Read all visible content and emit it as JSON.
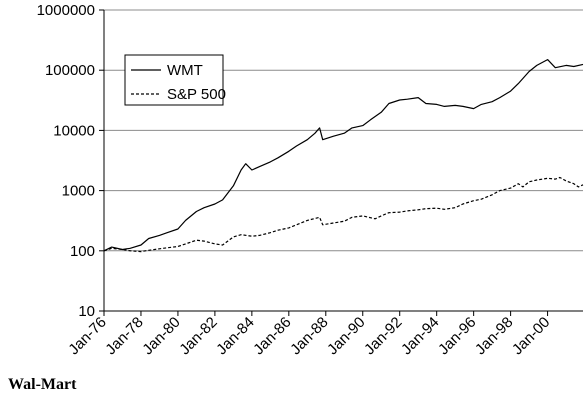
{
  "caption": "Wal-Mart",
  "chart_data": {
    "type": "line",
    "title": "",
    "xlabel": "",
    "ylabel": "",
    "yscale": "log",
    "ylim": [
      10,
      1000000
    ],
    "y_ticks": [
      10,
      100,
      1000,
      10000,
      100000,
      1000000
    ],
    "y_tick_labels": [
      "10",
      "100",
      "1000",
      "10000",
      "100000",
      "1000000"
    ],
    "x_range": [
      "1976-01",
      "2001-12"
    ],
    "x_tick_labels": [
      "Jan-76",
      "Jan-78",
      "Jan-80",
      "Jan-82",
      "Jan-84",
      "Jan-86",
      "Jan-88",
      "Jan-90",
      "Jan-92",
      "Jan-94",
      "Jan-96",
      "Jan-98",
      "Jan-00"
    ],
    "x_tick_dates": [
      "1976-01",
      "1978-01",
      "1980-01",
      "1982-01",
      "1984-01",
      "1986-01",
      "1988-01",
      "1990-01",
      "1992-01",
      "1994-01",
      "1996-01",
      "1998-01",
      "2000-01"
    ],
    "grid": "horizontal",
    "legend_position": "top-left",
    "series": [
      {
        "name": "WMT",
        "style": "solid",
        "color": "#000000",
        "points": [
          [
            "1976-01",
            100
          ],
          [
            "1976-06",
            115
          ],
          [
            "1977-01",
            105
          ],
          [
            "1977-06",
            110
          ],
          [
            "1978-01",
            125
          ],
          [
            "1978-06",
            160
          ],
          [
            "1979-01",
            180
          ],
          [
            "1979-06",
            200
          ],
          [
            "1980-01",
            230
          ],
          [
            "1980-06",
            320
          ],
          [
            "1981-01",
            450
          ],
          [
            "1981-06",
            520
          ],
          [
            "1982-01",
            600
          ],
          [
            "1982-06",
            700
          ],
          [
            "1983-01",
            1200
          ],
          [
            "1983-06",
            2200
          ],
          [
            "1983-09",
            2800
          ],
          [
            "1984-01",
            2200
          ],
          [
            "1984-06",
            2500
          ],
          [
            "1985-01",
            3000
          ],
          [
            "1985-06",
            3500
          ],
          [
            "1986-01",
            4500
          ],
          [
            "1986-06",
            5500
          ],
          [
            "1987-01",
            7000
          ],
          [
            "1987-06",
            9000
          ],
          [
            "1987-09",
            11000
          ],
          [
            "1987-11",
            7000
          ],
          [
            "1988-06",
            8000
          ],
          [
            "1989-01",
            9000
          ],
          [
            "1989-06",
            11000
          ],
          [
            "1990-01",
            12000
          ],
          [
            "1990-06",
            15000
          ],
          [
            "1991-01",
            20000
          ],
          [
            "1991-06",
            28000
          ],
          [
            "1992-01",
            32000
          ],
          [
            "1992-06",
            33000
          ],
          [
            "1993-01",
            35000
          ],
          [
            "1993-06",
            28000
          ],
          [
            "1994-01",
            27000
          ],
          [
            "1994-06",
            25000
          ],
          [
            "1995-01",
            26000
          ],
          [
            "1995-06",
            25000
          ],
          [
            "1996-01",
            23000
          ],
          [
            "1996-06",
            27000
          ],
          [
            "1997-01",
            30000
          ],
          [
            "1997-06",
            35000
          ],
          [
            "1998-01",
            45000
          ],
          [
            "1998-06",
            60000
          ],
          [
            "1999-01",
            95000
          ],
          [
            "1999-06",
            120000
          ],
          [
            "2000-01",
            150000
          ],
          [
            "2000-06",
            110000
          ],
          [
            "2001-01",
            120000
          ],
          [
            "2001-06",
            115000
          ],
          [
            "2001-12",
            125000
          ]
        ]
      },
      {
        "name": "S&P 500",
        "style": "dashed",
        "color": "#000000",
        "points": [
          [
            "1976-01",
            100
          ],
          [
            "1976-06",
            110
          ],
          [
            "1977-01",
            105
          ],
          [
            "1977-06",
            100
          ],
          [
            "1978-01",
            97
          ],
          [
            "1978-06",
            102
          ],
          [
            "1979-01",
            108
          ],
          [
            "1979-06",
            112
          ],
          [
            "1980-01",
            118
          ],
          [
            "1980-06",
            130
          ],
          [
            "1981-01",
            150
          ],
          [
            "1981-06",
            145
          ],
          [
            "1982-01",
            130
          ],
          [
            "1982-06",
            125
          ],
          [
            "1983-01",
            170
          ],
          [
            "1983-06",
            185
          ],
          [
            "1984-01",
            175
          ],
          [
            "1984-06",
            180
          ],
          [
            "1985-01",
            200
          ],
          [
            "1985-06",
            220
          ],
          [
            "1986-01",
            240
          ],
          [
            "1986-06",
            270
          ],
          [
            "1987-01",
            320
          ],
          [
            "1987-09",
            360
          ],
          [
            "1987-11",
            270
          ],
          [
            "1988-06",
            290
          ],
          [
            "1989-01",
            310
          ],
          [
            "1989-06",
            360
          ],
          [
            "1990-01",
            380
          ],
          [
            "1990-09",
            340
          ],
          [
            "1991-01",
            380
          ],
          [
            "1991-06",
            430
          ],
          [
            "1992-01",
            440
          ],
          [
            "1992-06",
            460
          ],
          [
            "1993-01",
            480
          ],
          [
            "1993-06",
            500
          ],
          [
            "1994-01",
            510
          ],
          [
            "1994-06",
            490
          ],
          [
            "1995-01",
            520
          ],
          [
            "1995-06",
            600
          ],
          [
            "1996-01",
            680
          ],
          [
            "1996-06",
            720
          ],
          [
            "1997-01",
            850
          ],
          [
            "1997-06",
            1000
          ],
          [
            "1998-01",
            1100
          ],
          [
            "1998-06",
            1300
          ],
          [
            "1998-09",
            1150
          ],
          [
            "1999-01",
            1400
          ],
          [
            "1999-06",
            1500
          ],
          [
            "2000-01",
            1600
          ],
          [
            "2000-06",
            1550
          ],
          [
            "2000-09",
            1650
          ],
          [
            "2001-01",
            1450
          ],
          [
            "2001-06",
            1300
          ],
          [
            "2001-09",
            1150
          ],
          [
            "2001-12",
            1250
          ]
        ]
      }
    ]
  }
}
